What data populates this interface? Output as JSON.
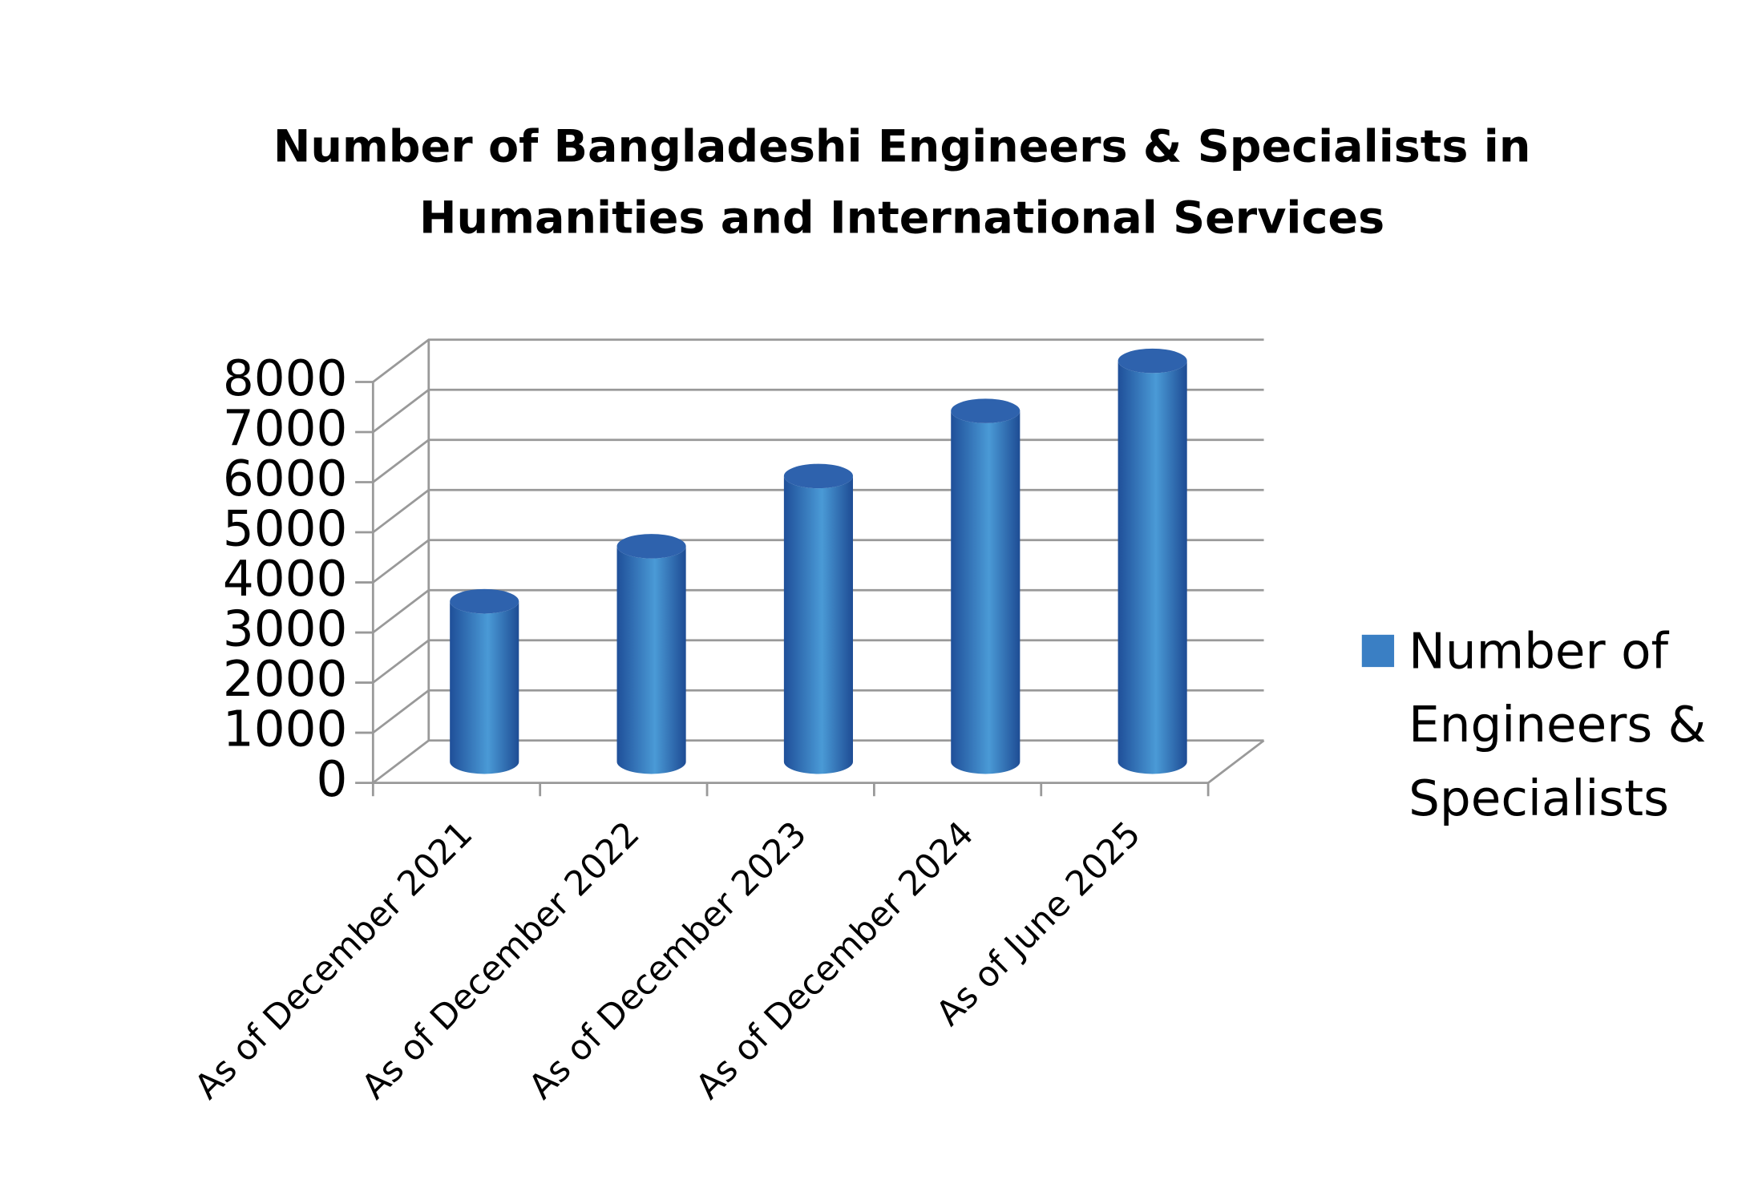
{
  "chart_data": {
    "type": "bar3d",
    "title": "Number of Bangladeshi Engineers & Specialists in Humanities and International Services",
    "categories": [
      "As of December 2021",
      "As of December 2022",
      "As of December 2023",
      "As of December 2024",
      "As of June 2025"
    ],
    "series": [
      {
        "name": "Number of Engineers & Specialists",
        "color": "#3a7fc4",
        "values": [
          3200,
          4300,
          5700,
          7000,
          8000
        ]
      }
    ],
    "ylim": [
      0,
      8000
    ],
    "yticks": [
      0,
      1000,
      2000,
      3000,
      4000,
      5000,
      6000,
      7000,
      8000
    ],
    "grid": true,
    "legend": "right"
  }
}
